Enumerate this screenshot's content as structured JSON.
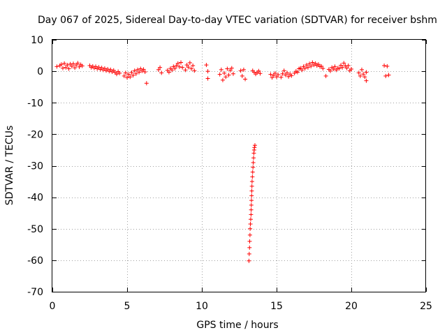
{
  "chart_data": {
    "type": "scatter",
    "title": "Day 067 of 2025, Sidereal Day-to-day VTEC variation (SDTVAR) for receiver bshm",
    "xlabel": "GPS time / hours",
    "ylabel": "SDTVAR / TECUs",
    "xlim": [
      0,
      25
    ],
    "ylim": [
      -70,
      10
    ],
    "xticks": [
      0,
      5,
      10,
      15,
      20,
      25
    ],
    "yticks": [
      10,
      0,
      -10,
      -20,
      -30,
      -40,
      -50,
      -60,
      -70
    ],
    "xtick_labels": [
      "0",
      "5",
      "10",
      "15",
      "20",
      "25"
    ],
    "ytick_labels": [
      "10",
      "0",
      "-10",
      "-20",
      "-30",
      "-40",
      "-50",
      "-60",
      "-70"
    ],
    "grid": true,
    "marker": "+",
    "color": "#ff0000",
    "series": [
      {
        "name": "SDTVAR",
        "points": [
          [
            0.3,
            1.5
          ],
          [
            0.5,
            1.8
          ],
          [
            0.6,
            2.2
          ],
          [
            0.7,
            1.0
          ],
          [
            0.8,
            2.5
          ],
          [
            0.9,
            1.2
          ],
          [
            1.0,
            2.0
          ],
          [
            1.1,
            0.8
          ],
          [
            1.2,
            2.3
          ],
          [
            1.3,
            1.6
          ],
          [
            1.4,
            2.4
          ],
          [
            1.5,
            1.1
          ],
          [
            1.6,
            2.0
          ],
          [
            1.7,
            2.6
          ],
          [
            1.8,
            1.4
          ],
          [
            1.9,
            2.1
          ],
          [
            2.0,
            1.7
          ],
          [
            2.5,
            1.8
          ],
          [
            2.6,
            1.2
          ],
          [
            2.7,
            1.6
          ],
          [
            2.8,
            1.0
          ],
          [
            2.9,
            1.5
          ],
          [
            3.0,
            0.8
          ],
          [
            3.1,
            1.3
          ],
          [
            3.2,
            0.6
          ],
          [
            3.3,
            1.1
          ],
          [
            3.4,
            0.4
          ],
          [
            3.5,
            0.9
          ],
          [
            3.6,
            0.2
          ],
          [
            3.7,
            0.7
          ],
          [
            3.8,
            0.0
          ],
          [
            3.9,
            0.5
          ],
          [
            4.0,
            -0.2
          ],
          [
            4.1,
            0.3
          ],
          [
            4.2,
            -0.4
          ],
          [
            4.3,
            -0.9
          ],
          [
            4.4,
            -0.1
          ],
          [
            4.5,
            -0.6
          ],
          [
            4.8,
            -1.5
          ],
          [
            4.9,
            -0.5
          ],
          [
            5.0,
            -2.0
          ],
          [
            5.1,
            -1.0
          ],
          [
            5.2,
            -1.8
          ],
          [
            5.3,
            -0.4
          ],
          [
            5.4,
            -1.3
          ],
          [
            5.5,
            0.2
          ],
          [
            5.6,
            -0.8
          ],
          [
            5.7,
            0.5
          ],
          [
            5.8,
            -0.3
          ],
          [
            5.9,
            0.8
          ],
          [
            6.0,
            0.1
          ],
          [
            6.1,
            0.6
          ],
          [
            6.2,
            -0.2
          ],
          [
            6.3,
            -3.8
          ],
          [
            7.1,
            0.5
          ],
          [
            7.2,
            1.2
          ],
          [
            7.3,
            -0.5
          ],
          [
            7.7,
            0.3
          ],
          [
            7.8,
            -0.3
          ],
          [
            7.9,
            0.9
          ],
          [
            8.0,
            0.4
          ],
          [
            8.1,
            1.5
          ],
          [
            8.2,
            0.9
          ],
          [
            8.3,
            1.8
          ],
          [
            8.4,
            2.5
          ],
          [
            8.5,
            1.4
          ],
          [
            8.6,
            2.8
          ],
          [
            8.7,
            1.2
          ],
          [
            8.9,
            0.4
          ],
          [
            9.0,
            2.0
          ],
          [
            9.1,
            1.3
          ],
          [
            9.2,
            2.7
          ],
          [
            9.3,
            0.8
          ],
          [
            9.4,
            1.8
          ],
          [
            9.5,
            0.2
          ],
          [
            10.3,
            2.0
          ],
          [
            10.4,
            0.0
          ],
          [
            10.4,
            -2.3
          ],
          [
            11.2,
            -1.0
          ],
          [
            11.3,
            0.5
          ],
          [
            11.4,
            -2.8
          ],
          [
            11.5,
            -0.6
          ],
          [
            11.6,
            -1.8
          ],
          [
            11.7,
            0.8
          ],
          [
            11.8,
            -1.2
          ],
          [
            11.9,
            0.3
          ],
          [
            12.0,
            1.0
          ],
          [
            12.1,
            -0.8
          ],
          [
            12.6,
            0.2
          ],
          [
            12.7,
            -1.5
          ],
          [
            12.8,
            0.5
          ],
          [
            12.9,
            -2.5
          ],
          [
            13.4,
            0.2
          ],
          [
            13.5,
            -0.3
          ],
          [
            13.6,
            -0.9
          ],
          [
            13.7,
            -0.4
          ],
          [
            13.8,
            0.1
          ],
          [
            13.9,
            -0.7
          ],
          [
            14.6,
            -1.0
          ],
          [
            14.7,
            -2.0
          ],
          [
            14.8,
            -1.3
          ],
          [
            14.9,
            -0.6
          ],
          [
            15.0,
            -1.8
          ],
          [
            15.1,
            -1.1
          ],
          [
            15.3,
            -1.9
          ],
          [
            15.4,
            -0.8
          ],
          [
            15.5,
            0.2
          ],
          [
            15.6,
            -1.2
          ],
          [
            15.7,
            -0.5
          ],
          [
            15.8,
            -1.7
          ],
          [
            15.9,
            -0.9
          ],
          [
            16.0,
            -1.4
          ],
          [
            16.2,
            -0.6
          ],
          [
            16.3,
            0.0
          ],
          [
            16.4,
            -0.3
          ],
          [
            16.5,
            0.8
          ],
          [
            16.6,
            1.0
          ],
          [
            16.7,
            0.4
          ],
          [
            16.8,
            1.5
          ],
          [
            16.9,
            0.9
          ],
          [
            17.0,
            2.0
          ],
          [
            17.1,
            1.2
          ],
          [
            17.2,
            2.4
          ],
          [
            17.3,
            1.6
          ],
          [
            17.4,
            2.8
          ],
          [
            17.5,
            2.0
          ],
          [
            17.6,
            2.5
          ],
          [
            17.7,
            1.8
          ],
          [
            17.8,
            2.2
          ],
          [
            17.9,
            1.5
          ],
          [
            18.0,
            1.6
          ],
          [
            18.1,
            0.9
          ],
          [
            18.3,
            -1.5
          ],
          [
            18.5,
            0.6
          ],
          [
            18.6,
            0.1
          ],
          [
            18.7,
            1.2
          ],
          [
            18.8,
            0.7
          ],
          [
            18.9,
            1.5
          ],
          [
            19.0,
            0.4
          ],
          [
            19.1,
            1.0
          ],
          [
            19.2,
            0.9
          ],
          [
            19.3,
            1.9
          ],
          [
            19.4,
            1.2
          ],
          [
            19.5,
            2.6
          ],
          [
            19.6,
            1.7
          ],
          [
            19.7,
            1.0
          ],
          [
            19.8,
            1.8
          ],
          [
            19.9,
            0.2
          ],
          [
            20.0,
            0.7
          ],
          [
            20.5,
            -0.5
          ],
          [
            20.6,
            -1.5
          ],
          [
            20.7,
            0.5
          ],
          [
            20.8,
            -0.9
          ],
          [
            20.9,
            -1.8
          ],
          [
            21.0,
            -0.3
          ],
          [
            21.0,
            -3.0
          ],
          [
            22.2,
            1.8
          ],
          [
            22.3,
            -1.5
          ],
          [
            22.4,
            1.6
          ],
          [
            22.5,
            -1.2
          ],
          [
            13.15,
            -60.2
          ],
          [
            13.17,
            -58.0
          ],
          [
            13.19,
            -56.0
          ],
          [
            13.2,
            -54.0
          ],
          [
            13.22,
            -52.0
          ],
          [
            13.23,
            -50.0
          ],
          [
            13.25,
            -48.5
          ],
          [
            13.27,
            -47.0
          ],
          [
            13.29,
            -45.5
          ],
          [
            13.3,
            -44.0
          ],
          [
            13.31,
            -42.5
          ],
          [
            13.32,
            -41.0
          ],
          [
            13.33,
            -39.5
          ],
          [
            13.34,
            -38.0
          ],
          [
            13.35,
            -36.5
          ],
          [
            13.36,
            -35.0
          ],
          [
            13.38,
            -33.5
          ],
          [
            13.4,
            -32.0
          ],
          [
            13.42,
            -30.5
          ],
          [
            13.44,
            -29.0
          ],
          [
            13.46,
            -27.5
          ],
          [
            13.48,
            -26.0
          ],
          [
            13.5,
            -25.0
          ],
          [
            13.52,
            -24.2
          ],
          [
            13.55,
            -23.5
          ]
        ]
      }
    ]
  }
}
